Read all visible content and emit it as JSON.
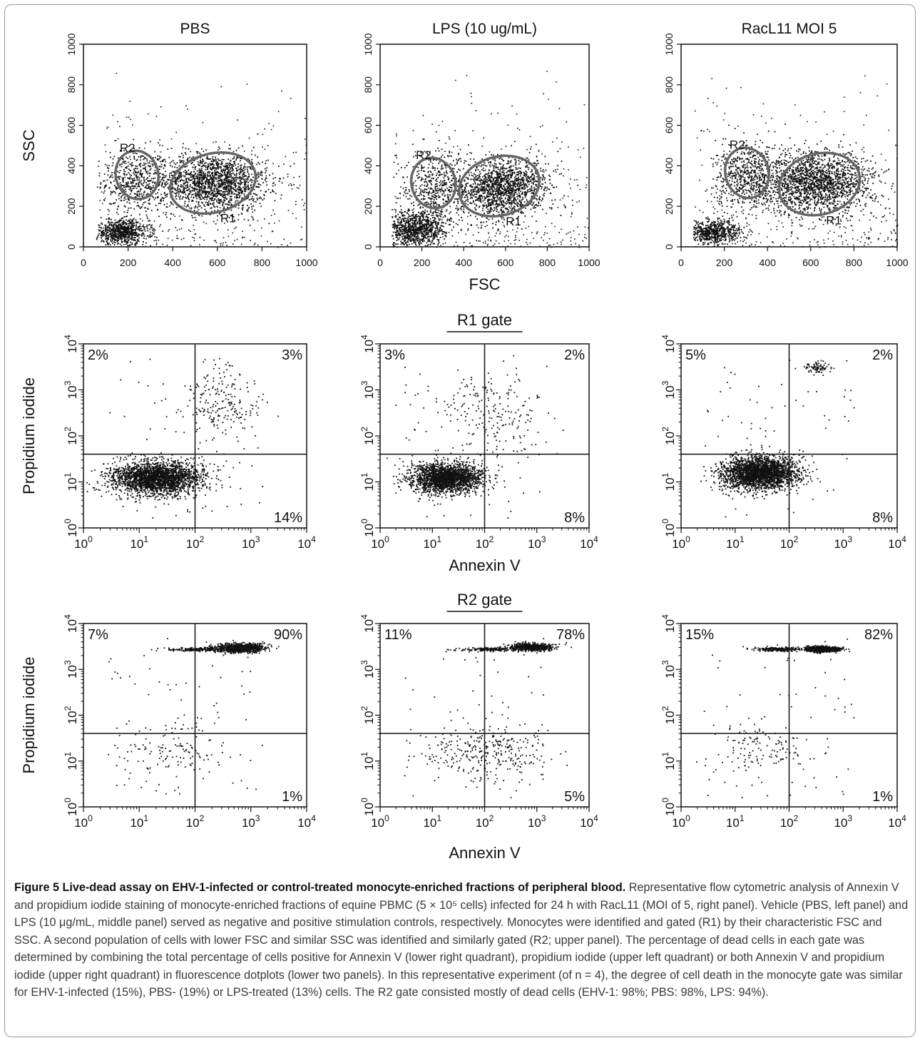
{
  "caption": {
    "label": "Figure 5",
    "title": "Live-dead assay on EHV-1-infected or control-treated monocyte-enriched fractions of peripheral blood.",
    "body": "Representative flow cytometric analysis of Annexin V and propidium iodide staining of monocyte-enriched fractions of equine PBMC (5 × 10⁵ cells) infected for 24 h with RacL11 (MOI of 5, right panel). Vehicle (PBS, left panel) and LPS (10 μg/mL, middle panel) served as negative and positive stimulation controls, respectively. Monocytes were identified and gated (R1) by their characteristic FSC and SSC. A second population of cells with lower FSC and similar SSC was identified and similarly gated (R2; upper panel). The percentage of dead cells in each gate was determined by combining the total percentage of cells positive for Annexin V (lower right quadrant), propidium iodide (upper left quadrant) or both Annexin V and propidium iodide (upper right quadrant) in fluorescence dotplots (lower two panels). In this representative experiment (of n = 4), the degree of cell death in the monocyte gate was similar for EHV-1-infected (15%), PBS- (19%) or LPS-treated (13%) cells. The R2 gate consisted mostly of dead cells (EHV-1: 98%; PBS: 98%, LPS: 94%)."
  },
  "colors": {
    "dots": "#111111",
    "frame": "#9a9a9a",
    "caption": "#3a3a3a"
  },
  "chart_data": [
    {
      "type": "scatter",
      "panel": "PBS",
      "title": "PBS",
      "xlabel": "",
      "ylabel": "SSC",
      "xlim": [
        0,
        1000
      ],
      "ylim": [
        0,
        1000
      ],
      "xticks": [
        0,
        200,
        400,
        600,
        800,
        1000
      ],
      "yticks": [
        0,
        200,
        400,
        600,
        800,
        1000
      ],
      "gates": [
        {
          "name": "R2",
          "cx": 240,
          "cy": 355,
          "rx": 95,
          "ry": 120
        },
        {
          "name": "R1",
          "cx": 580,
          "cy": 315,
          "rx": 195,
          "ry": 145
        }
      ],
      "populations": [
        {
          "cx": 230,
          "cy": 330,
          "sx": 75,
          "sy": 80,
          "n": 500
        },
        {
          "cx": 580,
          "cy": 320,
          "sx": 120,
          "sy": 70,
          "n": 1700
        },
        {
          "cx": 170,
          "cy": 75,
          "sx": 60,
          "sy": 30,
          "n": 700
        }
      ]
    },
    {
      "type": "scatter",
      "panel": "LPS",
      "title": "LPS (10 ug/mL)",
      "xlabel": "FSC",
      "ylabel": "",
      "xlim": [
        0,
        1000
      ],
      "ylim": [
        0,
        1000
      ],
      "xticks": [
        0,
        200,
        400,
        600,
        800,
        1000
      ],
      "yticks": [
        0,
        200,
        400,
        600,
        800,
        1000
      ],
      "gates": [
        {
          "name": "R2",
          "cx": 255,
          "cy": 315,
          "rx": 105,
          "ry": 125
        },
        {
          "name": "R1",
          "cx": 570,
          "cy": 300,
          "rx": 195,
          "ry": 145
        }
      ],
      "populations": [
        {
          "cx": 260,
          "cy": 300,
          "sx": 80,
          "sy": 90,
          "n": 500
        },
        {
          "cx": 580,
          "cy": 295,
          "sx": 110,
          "sy": 70,
          "n": 1500
        },
        {
          "cx": 170,
          "cy": 90,
          "sx": 70,
          "sy": 45,
          "n": 900
        }
      ]
    },
    {
      "type": "scatter",
      "panel": "RacL11",
      "title": "RacL11 MOI 5",
      "xlabel": "",
      "ylabel": "",
      "xlim": [
        0,
        1000
      ],
      "ylim": [
        0,
        1000
      ],
      "xticks": [
        0,
        200,
        400,
        600,
        800,
        1000
      ],
      "yticks": [
        0,
        200,
        400,
        600,
        800,
        1000
      ],
      "gates": [
        {
          "name": "R2",
          "cx": 305,
          "cy": 365,
          "rx": 100,
          "ry": 125
        },
        {
          "name": "R1",
          "cx": 640,
          "cy": 310,
          "rx": 190,
          "ry": 150
        }
      ],
      "populations": [
        {
          "cx": 310,
          "cy": 350,
          "sx": 75,
          "sy": 80,
          "n": 600
        },
        {
          "cx": 630,
          "cy": 320,
          "sx": 130,
          "sy": 75,
          "n": 1800
        },
        {
          "cx": 150,
          "cy": 75,
          "sx": 60,
          "sy": 30,
          "n": 600
        }
      ]
    },
    {
      "type": "scatter",
      "panel": "PBS",
      "gate": "R1",
      "title": "",
      "xlabel": "",
      "ylabel": "Propidium iodide",
      "scale": "log",
      "xlim": [
        1,
        10000
      ],
      "ylim": [
        1,
        10000
      ],
      "quadrant_lines": {
        "x": 100,
        "y": 40
      },
      "quadrants": {
        "upper_left": "2%",
        "upper_right": "3%",
        "lower_right": "14%"
      },
      "populations": [
        {
          "cx": 1.3,
          "cy": 1.1,
          "sx": 0.4,
          "sy": 0.18,
          "n": 2500
        },
        {
          "cx": 2.4,
          "cy": 2.7,
          "sx": 0.35,
          "sy": 0.4,
          "n": 200
        }
      ]
    },
    {
      "type": "scatter",
      "panel": "LPS",
      "gate": "R1",
      "title": "R1 gate",
      "xlabel": "Annexin V",
      "ylabel": "",
      "scale": "log",
      "xlim": [
        1,
        10000
      ],
      "ylim": [
        1,
        10000
      ],
      "quadrant_lines": {
        "x": 100,
        "y": 40
      },
      "quadrants": {
        "upper_left": "3%",
        "upper_right": "2%",
        "lower_right": "8%"
      },
      "populations": [
        {
          "cx": 1.25,
          "cy": 1.1,
          "sx": 0.33,
          "sy": 0.16,
          "n": 2200
        },
        {
          "cx": 2.1,
          "cy": 2.5,
          "sx": 0.5,
          "sy": 0.5,
          "n": 200
        }
      ]
    },
    {
      "type": "scatter",
      "panel": "RacL11",
      "gate": "R1",
      "title": "",
      "xlabel": "",
      "ylabel": "",
      "scale": "log",
      "xlim": [
        1,
        10000
      ],
      "ylim": [
        1,
        10000
      ],
      "quadrant_lines": {
        "x": 100,
        "y": 40
      },
      "quadrants": {
        "upper_left": "5%",
        "upper_right": "2%",
        "lower_right": "8%"
      },
      "populations": [
        {
          "cx": 1.45,
          "cy": 1.2,
          "sx": 0.35,
          "sy": 0.18,
          "n": 2600
        },
        {
          "cx": 2.5,
          "cy": 3.5,
          "sx": 0.1,
          "sy": 0.06,
          "n": 80
        }
      ]
    },
    {
      "type": "scatter",
      "panel": "PBS",
      "gate": "R2",
      "title": "",
      "xlabel": "",
      "ylabel": "Propidium iodide",
      "scale": "log",
      "xlim": [
        1,
        10000
      ],
      "ylim": [
        1,
        10000
      ],
      "quadrant_lines": {
        "x": 100,
        "y": 40
      },
      "quadrants": {
        "upper_left": "7%",
        "upper_right": "90%",
        "lower_right": "1%"
      },
      "populations": [
        {
          "cx": 2.8,
          "cy": 3.48,
          "sx": 0.22,
          "sy": 0.05,
          "n": 900
        },
        {
          "cx": 2.0,
          "cy": 3.45,
          "sx": 0.3,
          "sy": 0.02,
          "n": 200
        },
        {
          "cx": 1.5,
          "cy": 1.2,
          "sx": 0.5,
          "sy": 0.3,
          "n": 120
        }
      ]
    },
    {
      "type": "scatter",
      "panel": "LPS",
      "gate": "R2",
      "title": "R2 gate",
      "xlabel": "Annexin V",
      "ylabel": "",
      "scale": "log",
      "xlim": [
        1,
        10000
      ],
      "ylim": [
        1,
        10000
      ],
      "quadrant_lines": {
        "x": 100,
        "y": 40
      },
      "quadrants": {
        "upper_left": "11%",
        "upper_right": "78%",
        "lower_right": "5%"
      },
      "populations": [
        {
          "cx": 2.9,
          "cy": 3.5,
          "sx": 0.2,
          "sy": 0.04,
          "n": 700
        },
        {
          "cx": 2.1,
          "cy": 3.45,
          "sx": 0.3,
          "sy": 0.02,
          "n": 200
        },
        {
          "cx": 2.0,
          "cy": 1.2,
          "sx": 0.6,
          "sy": 0.25,
          "n": 300
        }
      ]
    },
    {
      "type": "scatter",
      "panel": "RacL11",
      "gate": "R2",
      "title": "",
      "xlabel": "",
      "ylabel": "",
      "scale": "log",
      "xlim": [
        1,
        10000
      ],
      "ylim": [
        1,
        10000
      ],
      "quadrant_lines": {
        "x": 100,
        "y": 40
      },
      "quadrants": {
        "upper_left": "15%",
        "upper_right": "82%",
        "lower_right": "1%"
      },
      "populations": [
        {
          "cx": 2.6,
          "cy": 3.45,
          "sx": 0.15,
          "sy": 0.03,
          "n": 900
        },
        {
          "cx": 1.8,
          "cy": 3.45,
          "sx": 0.2,
          "sy": 0.02,
          "n": 250
        },
        {
          "cx": 1.5,
          "cy": 1.3,
          "sx": 0.4,
          "sy": 0.25,
          "n": 120
        }
      ]
    }
  ]
}
